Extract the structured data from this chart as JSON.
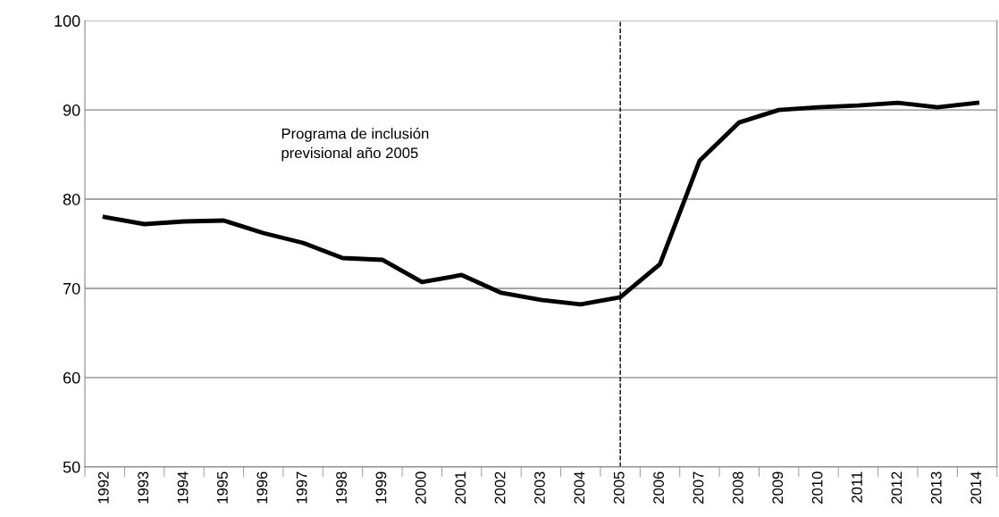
{
  "chart_data": {
    "type": "line",
    "categories": [
      "1992",
      "1993",
      "1994",
      "1995",
      "1996",
      "1997",
      "1998",
      "1999",
      "2000",
      "2001",
      "2002",
      "2003",
      "2004",
      "2005",
      "2006",
      "2007",
      "2008",
      "2009",
      "2010",
      "2011",
      "2012",
      "2013",
      "2014"
    ],
    "series": [
      {
        "color": "#000000",
        "values": [
          78.0,
          77.2,
          77.5,
          77.6,
          76.2,
          75.1,
          73.4,
          73.2,
          70.7,
          71.5,
          69.5,
          68.7,
          68.2,
          69.0,
          72.7,
          84.3,
          88.6,
          90.0,
          90.3,
          90.5,
          90.8,
          90.3,
          90.8
        ]
      }
    ],
    "ylim": [
      50,
      100
    ],
    "yticks": [
      50,
      60,
      70,
      80,
      90,
      100
    ],
    "grid": "y",
    "legend": false,
    "marker": "none",
    "line_style": "solid",
    "ref_lines": [
      {
        "axis": "x",
        "value": "2005",
        "color": "#000000",
        "line_style": "dashed"
      }
    ],
    "annotations": [
      "Programa de inclusión\nprevisional año 2005"
    ]
  }
}
